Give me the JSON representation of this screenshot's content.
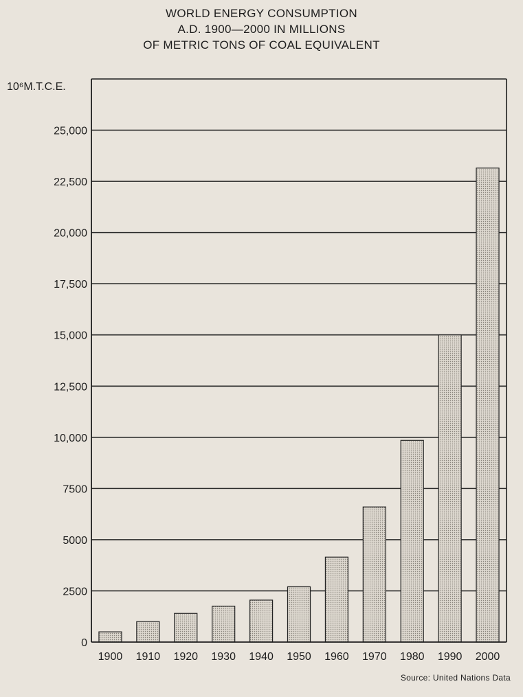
{
  "chart_data": {
    "type": "bar",
    "title_lines": [
      "WORLD ENERGY CONSUMPTION",
      "A.D. 1900—2000 IN MILLIONS",
      "OF METRIC TONS OF COAL EQUIVALENT"
    ],
    "ylabel": "10⁶M.T.C.E.",
    "xlabel": "",
    "categories": [
      "1900",
      "1910",
      "1920",
      "1930",
      "1940",
      "1950",
      "1960",
      "1970",
      "1980",
      "1990",
      "2000"
    ],
    "values": [
      500,
      1000,
      1400,
      1750,
      2050,
      2700,
      4150,
      6600,
      9850,
      15000,
      23150
    ],
    "yticks": [
      0,
      2500,
      5000,
      7500,
      10000,
      12500,
      15000,
      17500,
      20000,
      22500,
      25000
    ],
    "ytick_labels": [
      "0",
      "2500",
      "5000",
      "7500",
      "10,000",
      "12,500",
      "15,000",
      "17,500",
      "20,000",
      "22,500",
      "25,000"
    ],
    "ylim": [
      0,
      27500
    ],
    "grid": true,
    "bar_fill": "#d6d1c8",
    "bar_stroke": "#222222",
    "source": "Source: United Nations Data"
  }
}
